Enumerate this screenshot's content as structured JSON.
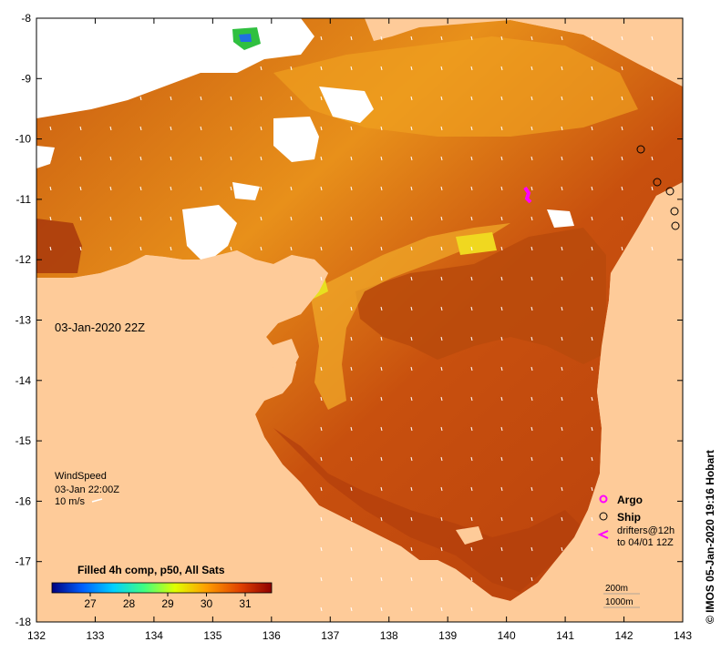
{
  "map": {
    "timestamp": "03-Jan-2020 22Z",
    "credit": "© IMOS 05-Jan-2020 19:16 Hobart",
    "colors": {
      "land": "#fecb99",
      "sea_base": "#e07a10",
      "sea_warm": "#b8400c",
      "sea_cool": "#f0a020",
      "cloud": "#ffffff",
      "argo": "#ff00ff"
    }
  },
  "axes": {
    "x_ticks": [
      "132",
      "133",
      "134",
      "135",
      "136",
      "137",
      "138",
      "139",
      "140",
      "141",
      "142",
      "143"
    ],
    "y_ticks": [
      "-8",
      "-9",
      "-10",
      "-11",
      "-12",
      "-13",
      "-14",
      "-15",
      "-16",
      "-17",
      "-18"
    ]
  },
  "wind": {
    "title": "WindSpeed",
    "time": "03-Jan 22:00Z",
    "scale": "10 m/s"
  },
  "legend": {
    "argo": "Argo",
    "ship": "Ship",
    "drifters_line1": "drifters@12h",
    "drifters_line2": "to 04/01 12Z",
    "depth_200": "200m",
    "depth_1000": "1000m"
  },
  "colorbar": {
    "title": "Filled 4h comp, p50, All Sats",
    "ticks": [
      "27",
      "28",
      "29",
      "30",
      "31"
    ],
    "colors": [
      "#00007f",
      "#0060ff",
      "#00d0ff",
      "#40ff80",
      "#e0ff00",
      "#ffa000",
      "#e04000",
      "#8f0000"
    ]
  }
}
